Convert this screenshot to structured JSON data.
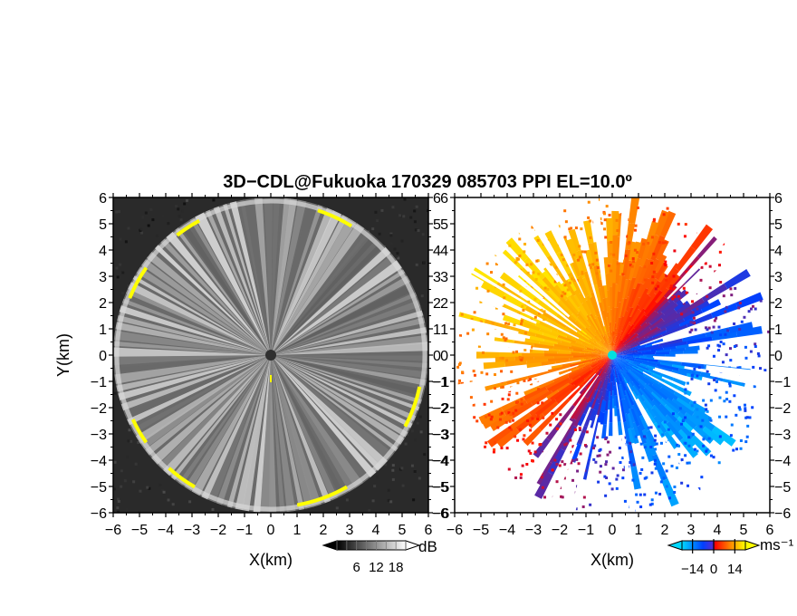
{
  "title": "3D−CDL@Fukuoka 170329 085703 PPI EL=10.0º",
  "chart_data": [
    {
      "type": "heatmap",
      "panel": "left",
      "quantity": "SNR",
      "xlabel": "X(km)",
      "ylabel": "Y(km)",
      "xlim": [
        -6,
        6
      ],
      "ylim": [
        -6,
        6
      ],
      "x_ticks": [
        "−6",
        "−5",
        "−4",
        "−3",
        "−2",
        "−1",
        "0",
        "1",
        "2",
        "3",
        "4",
        "5",
        "6"
      ],
      "y_ticks": [
        "−6",
        "−5",
        "−4",
        "−3",
        "−2",
        "−1",
        "0",
        "1",
        "2",
        "3",
        "4",
        "5",
        "6"
      ],
      "colorbar": {
        "unit": "dB",
        "tick_labels": [
          "6",
          "12",
          "18"
        ],
        "range": [
          0,
          21
        ],
        "colors": [
          "#000000",
          "#ffffff"
        ]
      },
      "range_limit_km": 6,
      "high_intensity_color": "#ffff00"
    },
    {
      "type": "heatmap",
      "panel": "right",
      "quantity": "Doppler velocity",
      "xlabel": "X(km)",
      "ylabel": "",
      "xlim": [
        -6,
        6
      ],
      "ylim": [
        -6,
        6
      ],
      "x_ticks": [
        "−6",
        "−5",
        "−4",
        "−3",
        "−2",
        "−1",
        "0",
        "1",
        "2",
        "3",
        "4",
        "5",
        "6"
      ],
      "y_ticks": [
        "−6",
        "−5",
        "−4",
        "−3",
        "−2",
        "−1",
        "0",
        "1",
        "2",
        "3",
        "4",
        "5",
        "6"
      ],
      "colorbar": {
        "unit": "ms⁻¹",
        "tick_labels": [
          "−14",
          "0",
          "14"
        ],
        "range": [
          -21,
          21
        ],
        "colors": [
          "#00d8ff",
          "#0040ff",
          "#ff0000",
          "#ff8000",
          "#ffff00"
        ]
      },
      "range_limit_km": 6,
      "center_marker_color": "#00e0e0"
    }
  ]
}
